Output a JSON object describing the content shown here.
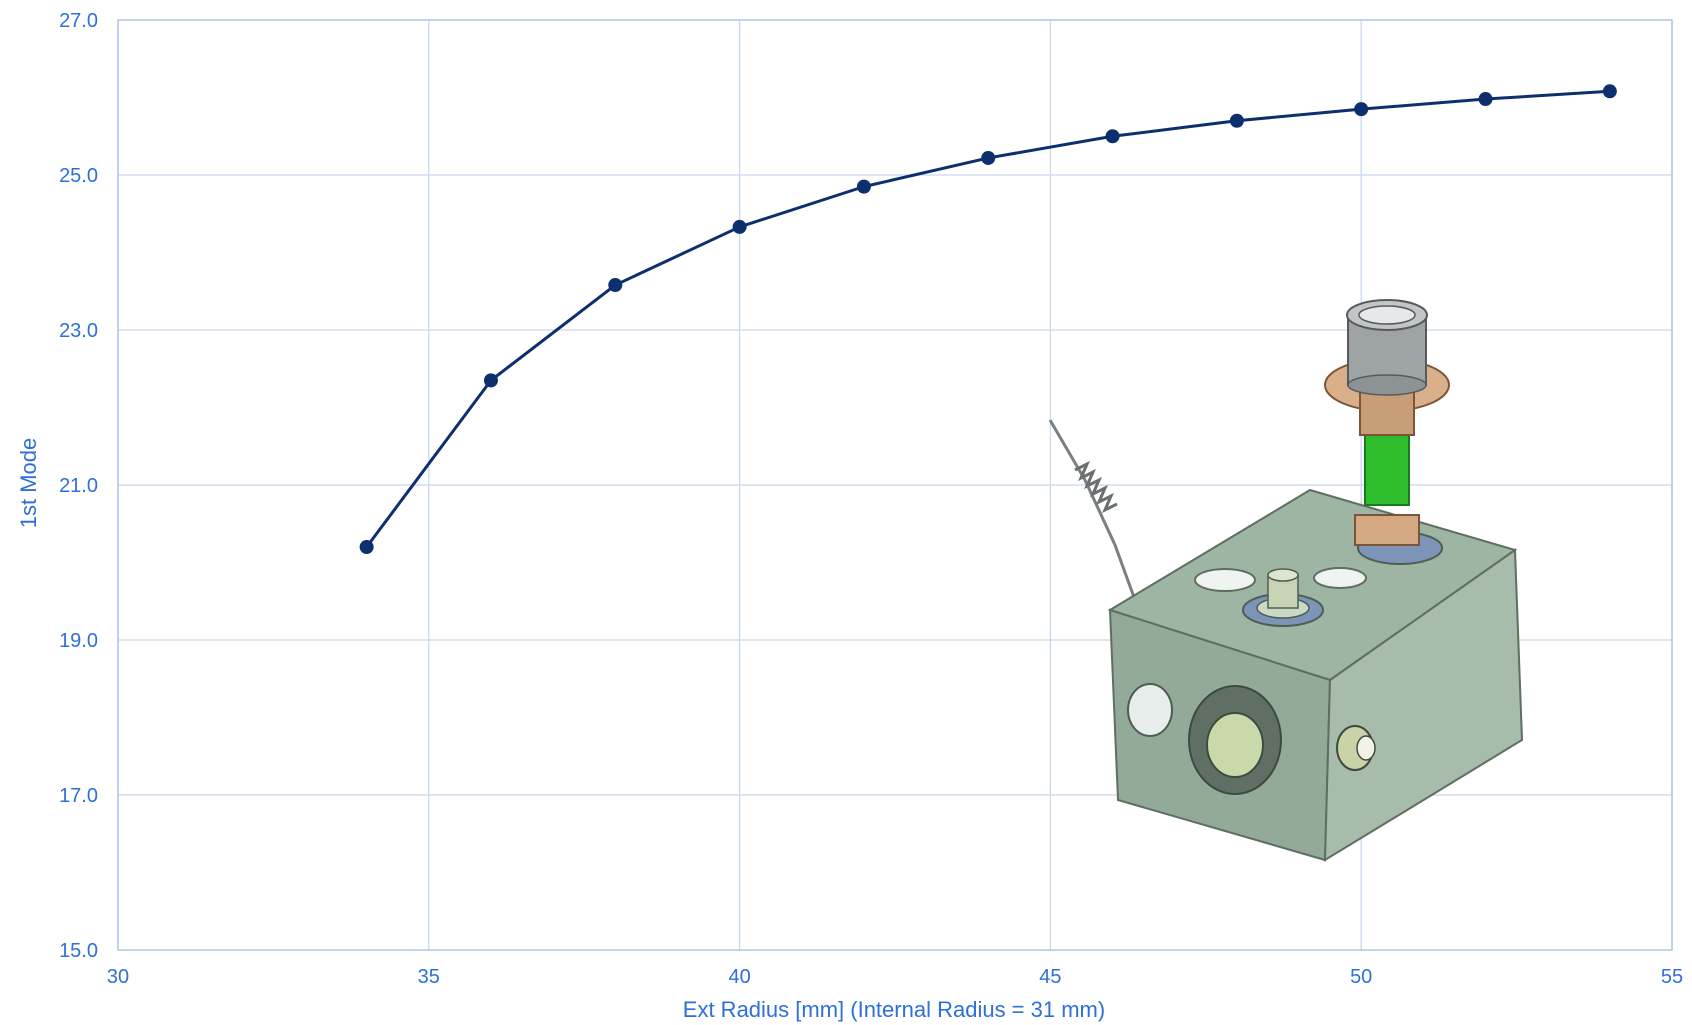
{
  "chart_data": {
    "type": "line",
    "xlabel": "Ext Radius [mm] (Internal Radius = 31 mm)",
    "ylabel": "1st Mode",
    "xlim": [
      30,
      55
    ],
    "ylim": [
      15.0,
      27.0
    ],
    "x_ticks": [
      "30",
      "35",
      "40",
      "45",
      "50",
      "55"
    ],
    "y_ticks": [
      "15.0",
      "17.0",
      "19.0",
      "21.0",
      "23.0",
      "25.0",
      "27.0"
    ],
    "grid": true,
    "legend": "none",
    "series": [
      {
        "x": [
          34,
          36,
          38,
          40,
          42,
          44,
          46,
          48,
          50,
          52,
          54
        ],
        "values": [
          20.2,
          22.35,
          23.58,
          24.33,
          24.85,
          25.22,
          25.5,
          25.7,
          25.85,
          25.98,
          26.08
        ]
      }
    ],
    "line_color": "#0d2f6e",
    "annotation_image": "3d-cad-model"
  }
}
